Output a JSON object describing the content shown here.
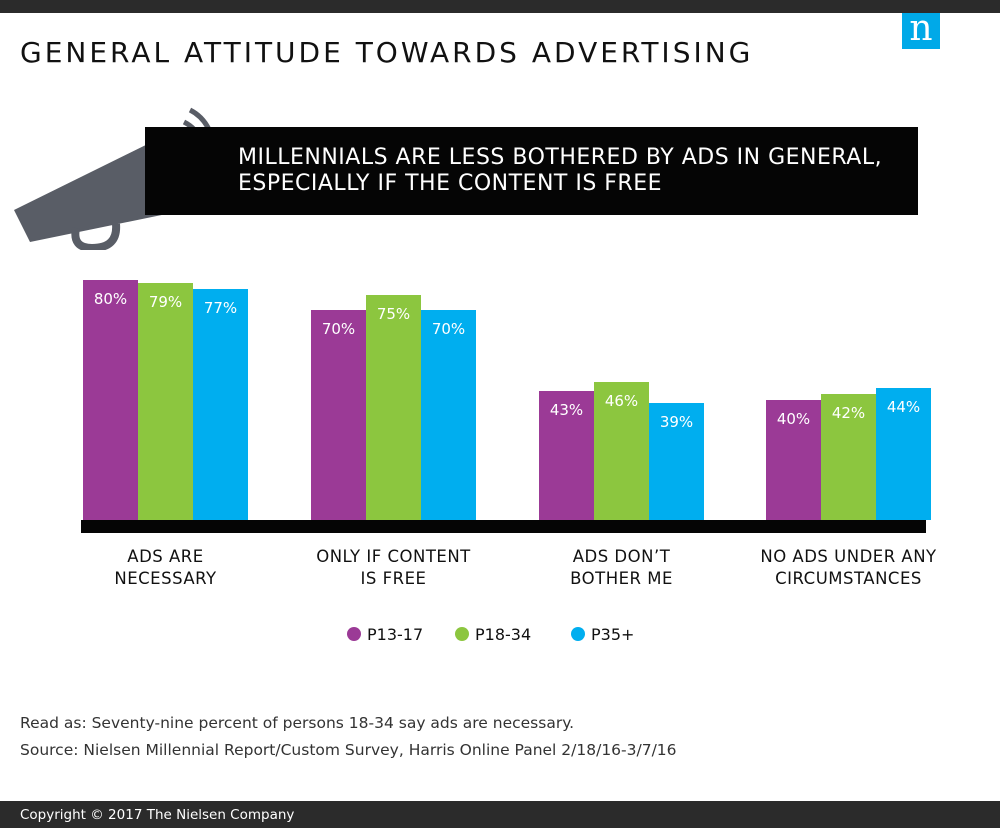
{
  "title": "GENERAL ATTITUDE TOWARDS ADVERTISING",
  "logo_letter": "n",
  "banner": {
    "line1": "MILLENNIALS ARE LESS BOTHERED BY ADS IN GENERAL,",
    "line2": "ESPECIALLY IF THE CONTENT IS FREE"
  },
  "chart_data": {
    "type": "bar",
    "categories": [
      [
        "ADS ARE",
        "NECESSARY"
      ],
      [
        "ONLY IF CONTENT",
        "IS FREE"
      ],
      [
        "ADS DON’T",
        "BOTHER ME"
      ],
      [
        "NO ADS UNDER ANY",
        "CIRCUMSTANCES"
      ]
    ],
    "series": [
      {
        "name": "P13-17",
        "color": "#9b3a96",
        "values": [
          80,
          70,
          43,
          40
        ]
      },
      {
        "name": "P18-34",
        "color": "#8cc63f",
        "values": [
          79,
          75,
          46,
          42
        ]
      },
      {
        "name": "P35+",
        "color": "#00aeef",
        "values": [
          77,
          70,
          39,
          44
        ]
      }
    ],
    "value_suffix": "%",
    "legend_position": "bottom",
    "grid": false
  },
  "notes": {
    "read_as": "Read as: Seventy-nine percent of persons 18-34 say ads are necessary.",
    "source": "Source: Nielsen Millennial Report/Custom Survey, Harris Online Panel 2/18/16-3/7/16"
  },
  "footer": {
    "copyright": "Copyright © 2017 The Nielsen Company"
  }
}
